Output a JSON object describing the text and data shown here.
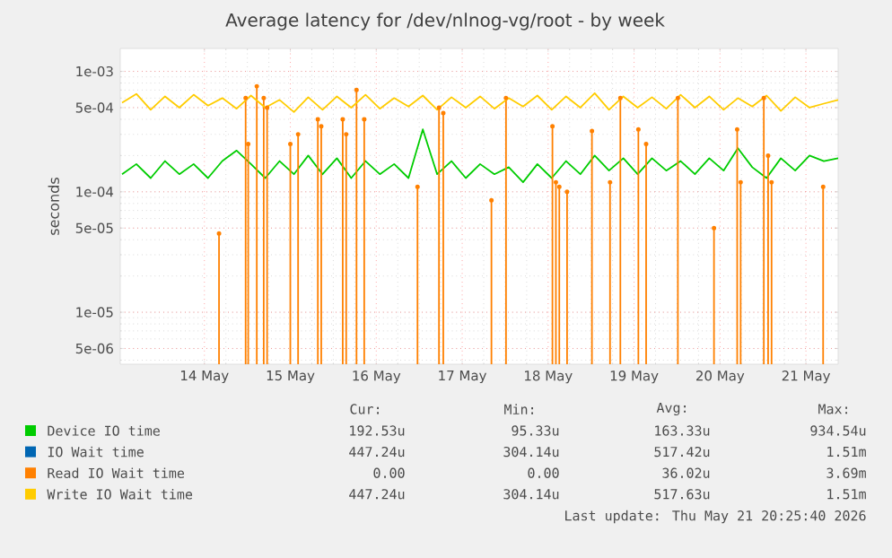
{
  "chart_data": {
    "type": "line",
    "title": "Average latency for /dev/nlnog-vg/root - by week",
    "ylabel": "seconds",
    "log": "y",
    "grid": true,
    "legend": "bottom",
    "marker": "none",
    "line_style": "solid",
    "xlim": [
      "2026-05-13T00:30",
      "2026-05-21T09:00"
    ],
    "ylim": [
      3.7e-06,
      0.00155
    ],
    "xticks": [
      {
        "value": "2026-05-14",
        "label": "14 May"
      },
      {
        "value": "2026-05-15",
        "label": "15 May"
      },
      {
        "value": "2026-05-16",
        "label": "16 May"
      },
      {
        "value": "2026-05-17",
        "label": "17 May"
      },
      {
        "value": "2026-05-18",
        "label": "18 May"
      },
      {
        "value": "2026-05-19",
        "label": "19 May"
      },
      {
        "value": "2026-05-20",
        "label": "20 May"
      },
      {
        "value": "2026-05-21",
        "label": "21 May"
      }
    ],
    "yticks": [
      {
        "value": 5e-06,
        "label": "5e-06"
      },
      {
        "value": 1e-05,
        "label": "1e-05"
      },
      {
        "value": 5e-05,
        "label": "5e-05"
      },
      {
        "value": 0.0001,
        "label": "1e-04"
      },
      {
        "value": 0.0005,
        "label": "5e-04"
      },
      {
        "value": 0.001,
        "label": "1e-03"
      }
    ],
    "x": [
      "2026-05-13T01:00",
      "2026-05-13T05:00",
      "2026-05-13T09:00",
      "2026-05-13T13:00",
      "2026-05-13T17:00",
      "2026-05-13T21:00",
      "2026-05-14T01:00",
      "2026-05-14T05:00",
      "2026-05-14T09:00",
      "2026-05-14T13:00",
      "2026-05-14T17:00",
      "2026-05-14T21:00",
      "2026-05-15T01:00",
      "2026-05-15T05:00",
      "2026-05-15T09:00",
      "2026-05-15T13:00",
      "2026-05-15T17:00",
      "2026-05-15T21:00",
      "2026-05-16T01:00",
      "2026-05-16T05:00",
      "2026-05-16T09:00",
      "2026-05-16T13:00",
      "2026-05-16T17:00",
      "2026-05-16T21:00",
      "2026-05-17T01:00",
      "2026-05-17T05:00",
      "2026-05-17T09:00",
      "2026-05-17T13:00",
      "2026-05-17T17:00",
      "2026-05-17T21:00",
      "2026-05-18T01:00",
      "2026-05-18T05:00",
      "2026-05-18T09:00",
      "2026-05-18T13:00",
      "2026-05-18T17:00",
      "2026-05-18T21:00",
      "2026-05-19T01:00",
      "2026-05-19T05:00",
      "2026-05-19T09:00",
      "2026-05-19T13:00",
      "2026-05-19T17:00",
      "2026-05-19T21:00",
      "2026-05-20T01:00",
      "2026-05-20T05:00",
      "2026-05-20T09:00",
      "2026-05-20T13:00",
      "2026-05-20T17:00",
      "2026-05-20T21:00",
      "2026-05-21T01:00",
      "2026-05-21T05:00",
      "2026-05-21T09:00"
    ],
    "series": [
      {
        "name": "Device IO time",
        "color": "#00cc00",
        "values": [
          0.00014,
          0.00017,
          0.00013,
          0.00018,
          0.00014,
          0.00017,
          0.00013,
          0.00018,
          0.00022,
          0.00017,
          0.00013,
          0.00018,
          0.00014,
          0.0002,
          0.00014,
          0.00019,
          0.00013,
          0.00018,
          0.00014,
          0.00017,
          0.00013,
          0.00033,
          0.00014,
          0.00018,
          0.00013,
          0.00017,
          0.00014,
          0.00016,
          0.00012,
          0.00017,
          0.00013,
          0.00018,
          0.00014,
          0.0002,
          0.00015,
          0.00019,
          0.00014,
          0.00019,
          0.00015,
          0.00018,
          0.00014,
          0.00019,
          0.00015,
          0.00023,
          0.00016,
          0.00013,
          0.00019,
          0.00015,
          0.0002,
          0.00018,
          0.00019
        ]
      },
      {
        "name": "IO Wait time",
        "color": "#0066b3",
        "values": [
          null,
          null,
          null,
          null,
          null,
          null,
          null,
          null,
          null,
          null,
          null,
          null,
          null,
          null,
          null,
          null,
          null,
          null,
          null,
          null,
          null,
          null,
          null,
          null,
          null,
          null,
          null,
          null,
          null,
          null,
          null,
          null,
          null,
          null,
          null,
          null,
          null,
          null,
          null,
          null,
          null,
          null,
          null,
          null,
          null,
          null,
          null,
          null,
          null,
          null,
          null
        ]
      },
      {
        "name": "Read IO Wait time",
        "color": "#ff8000",
        "type": "lollipop",
        "x": [
          "2026-05-14T04:05",
          "2026-05-14T11:31",
          "2026-05-14T12:14",
          "2026-05-14T14:38",
          "2026-05-14T16:34",
          "2026-05-14T17:31",
          "2026-05-15T00:00",
          "2026-05-15T02:10",
          "2026-05-15T07:41",
          "2026-05-15T08:38",
          "2026-05-15T14:38",
          "2026-05-15T15:36",
          "2026-05-15T18:29",
          "2026-05-15T20:38",
          "2026-05-16T11:31",
          "2026-05-16T17:31",
          "2026-05-16T18:43",
          "2026-05-17T08:10",
          "2026-05-17T12:14",
          "2026-05-18T01:12",
          "2026-05-18T02:10",
          "2026-05-18T03:07",
          "2026-05-18T05:17",
          "2026-05-18T12:14",
          "2026-05-18T17:17",
          "2026-05-18T20:10",
          "2026-05-19T01:12",
          "2026-05-19T03:22",
          "2026-05-19T12:14",
          "2026-05-19T22:19",
          "2026-05-20T04:48",
          "2026-05-20T05:46",
          "2026-05-20T12:14",
          "2026-05-20T13:26",
          "2026-05-20T14:24",
          "2026-05-21T04:48"
        ],
        "values": [
          4.5e-05,
          0.0006,
          0.00025,
          0.00075,
          0.0006,
          0.0005,
          0.00025,
          0.0003,
          0.0004,
          0.00035,
          0.0004,
          0.0003,
          0.0007,
          0.0004,
          0.00011,
          0.0005,
          0.00045,
          8.5e-05,
          0.0006,
          0.00035,
          0.00012,
          0.00011,
          0.0001,
          0.00032,
          0.00012,
          0.0006,
          0.00033,
          0.00025,
          0.0006,
          5e-05,
          0.00033,
          0.00012,
          0.0006,
          0.0002,
          0.00012,
          0.00011
        ]
      },
      {
        "name": "Write IO Wait time",
        "color": "#ffcc00",
        "values": [
          0.00055,
          0.00065,
          0.00048,
          0.00062,
          0.0005,
          0.00064,
          0.00052,
          0.0006,
          0.00049,
          0.00063,
          0.0005,
          0.00058,
          0.00046,
          0.00061,
          0.00048,
          0.00062,
          0.0005,
          0.00064,
          0.00049,
          0.0006,
          0.00051,
          0.00063,
          0.00048,
          0.00061,
          0.0005,
          0.00062,
          0.00049,
          0.0006,
          0.00051,
          0.00063,
          0.00048,
          0.00062,
          0.0005,
          0.00066,
          0.00048,
          0.00062,
          0.0005,
          0.00061,
          0.00049,
          0.00064,
          0.0005,
          0.00062,
          0.00048,
          0.0006,
          0.00051,
          0.00063,
          0.00047,
          0.00061,
          0.0005,
          0.00054,
          0.00058
        ]
      }
    ],
    "annotations": [
      "Cur:",
      "Min:",
      "Avg:",
      "Max:",
      "192.53u",
      "95.33u",
      "163.33u",
      "934.54u",
      "447.24u",
      "304.14u",
      "517.42u",
      "1.51m",
      "0.00",
      "0.00",
      "36.02u",
      "3.69m",
      "447.24u",
      "304.14u",
      "517.63u",
      "1.51m",
      "Last update: Thu May 21 20:25:40 2026"
    ]
  }
}
